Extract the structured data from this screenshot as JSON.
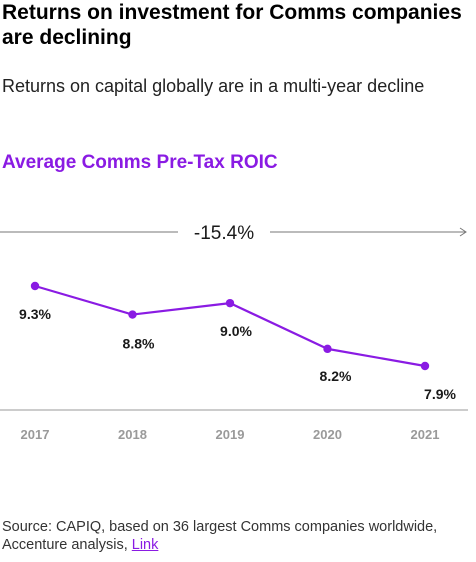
{
  "header": {
    "title": "Returns on investment for Comms companies are declining",
    "subtitle": "Returns on capital globally are in a multi-year decline"
  },
  "source": {
    "text": "Source: CAPIQ, based on 36 largest Comms companies worldwide, Accenture analysis,",
    "link_label": "Link"
  },
  "colors": {
    "accent": "#8a1be3",
    "axis": "#999999",
    "tick_label": "#9a9a9a",
    "value_label": "#1a1a1a"
  },
  "chart_data": {
    "type": "line",
    "title": "Average Comms Pre-Tax ROIC",
    "annotation": "-15.4%",
    "categories": [
      "2017",
      "2018",
      "2019",
      "2020",
      "2021"
    ],
    "series": [
      {
        "values": [
          9.3,
          8.8,
          9.0,
          8.2,
          7.9
        ],
        "labels": [
          "9.3%",
          "8.8%",
          "9.0%",
          "8.2%",
          "7.9%"
        ]
      }
    ],
    "xlabel": "",
    "ylabel": "",
    "grid": false,
    "legend": "none"
  }
}
